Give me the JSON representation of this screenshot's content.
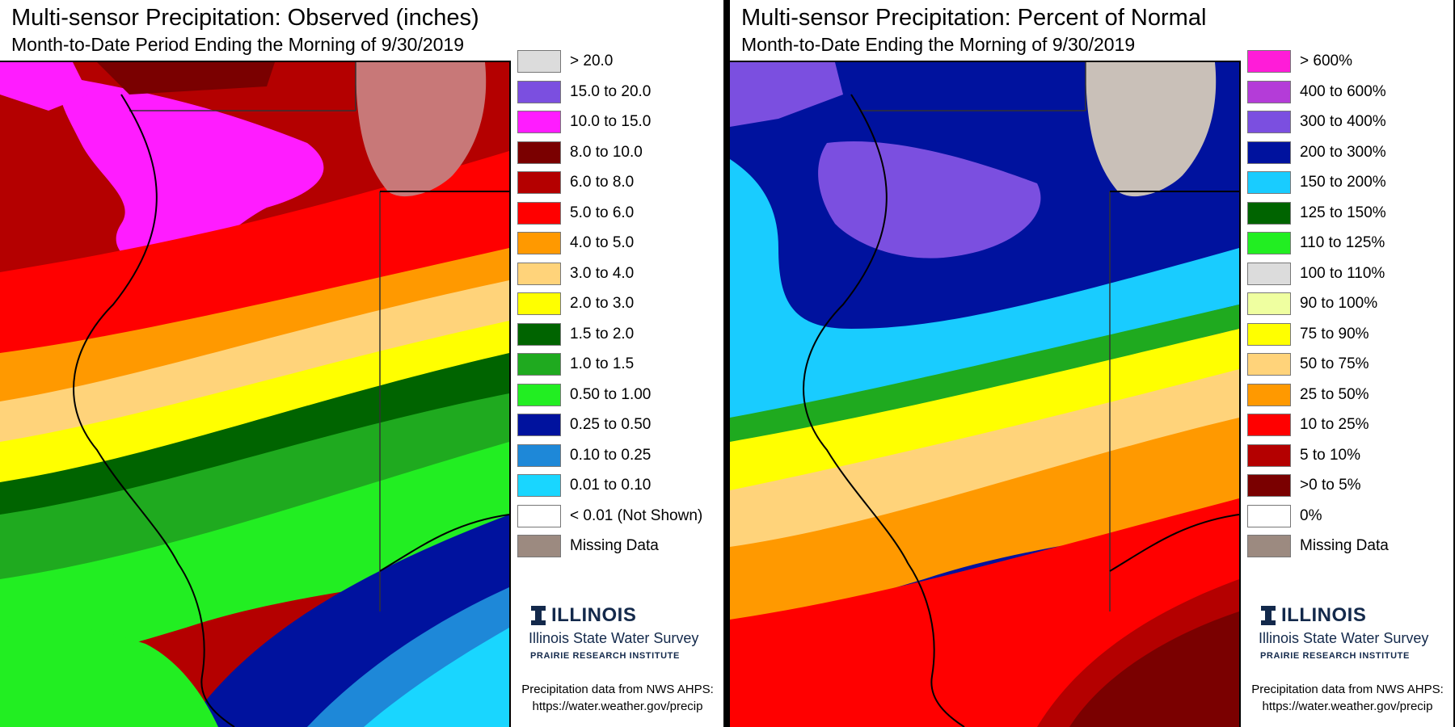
{
  "panels": [
    {
      "title": "Multi-sensor Precipitation: Observed (inches)",
      "subtitle": "Month-to-Date Period Ending the Morning of 9/30/2019",
      "legend": [
        {
          "label": "> 20.0",
          "color": "#dcdcdc"
        },
        {
          "label": "15.0 to 20.0",
          "color": "#7b4fe0"
        },
        {
          "label": "10.0 to 15.0",
          "color": "#ff1cff"
        },
        {
          "label": "8.0 to 10.0",
          "color": "#7a0000"
        },
        {
          "label": "6.0 to 8.0",
          "color": "#b40000"
        },
        {
          "label": "5.0 to 6.0",
          "color": "#ff0000"
        },
        {
          "label": "4.0 to 5.0",
          "color": "#ff9900"
        },
        {
          "label": "3.0 to 4.0",
          "color": "#ffd37a"
        },
        {
          "label": "2.0 to 3.0",
          "color": "#ffff00"
        },
        {
          "label": "1.5 to 2.0",
          "color": "#006400"
        },
        {
          "label": "1.0 to 1.5",
          "color": "#1faa1f"
        },
        {
          "label": "0.50 to 1.00",
          "color": "#22ee22"
        },
        {
          "label": "0.25 to 0.50",
          "color": "#00129e"
        },
        {
          "label": "0.10 to 0.25",
          "color": "#1e88d8"
        },
        {
          "label": "0.01 to 0.10",
          "color": "#19d6ff"
        },
        {
          "label": "< 0.01 (Not Shown)",
          "color": "#ffffff"
        },
        {
          "label": "Missing Data",
          "color": "#9c8a80"
        }
      ],
      "logo": {
        "name": "ILLINOIS",
        "sub": "Illinois State Water Survey",
        "inst": "PRAIRIE RESEARCH INSTITUTE"
      },
      "credit_line1": "Precipitation data from NWS AHPS:",
      "credit_line2": "https://water.weather.gov/precip"
    },
    {
      "title": "Multi-sensor Precipitation: Percent of Normal",
      "subtitle": "Month-to-Date Ending the Morning of 9/30/2019",
      "legend": [
        {
          "label": "> 600%",
          "color": "#ff1cd8"
        },
        {
          "label": "400 to 600%",
          "color": "#b43cd8"
        },
        {
          "label": "300 to 400%",
          "color": "#7b4fe0"
        },
        {
          "label": "200 to 300%",
          "color": "#00129e"
        },
        {
          "label": "150 to 200%",
          "color": "#19ccff"
        },
        {
          "label": "125 to 150%",
          "color": "#006400"
        },
        {
          "label": "110 to 125%",
          "color": "#22ee22"
        },
        {
          "label": "100 to 110%",
          "color": "#dcdcdc"
        },
        {
          "label": "90 to 100%",
          "color": "#efffa0"
        },
        {
          "label": "75 to 90%",
          "color": "#ffff00"
        },
        {
          "label": "50 to 75%",
          "color": "#ffd37a"
        },
        {
          "label": "25 to 50%",
          "color": "#ff9900"
        },
        {
          "label": "10 to 25%",
          "color": "#ff0000"
        },
        {
          "label": "5 to 10%",
          "color": "#b40000"
        },
        {
          "label": ">0 to 5%",
          "color": "#7a0000"
        },
        {
          "label": "0%",
          "color": "#ffffff"
        },
        {
          "label": "Missing Data",
          "color": "#9c8a80"
        }
      ],
      "logo": {
        "name": "ILLINOIS",
        "sub": "Illinois State Water Survey",
        "inst": "PRAIRIE RESEARCH INSTITUTE"
      },
      "credit_line1": "Precipitation data from NWS AHPS:",
      "credit_line2": "https://water.weather.gov/precip"
    }
  ]
}
